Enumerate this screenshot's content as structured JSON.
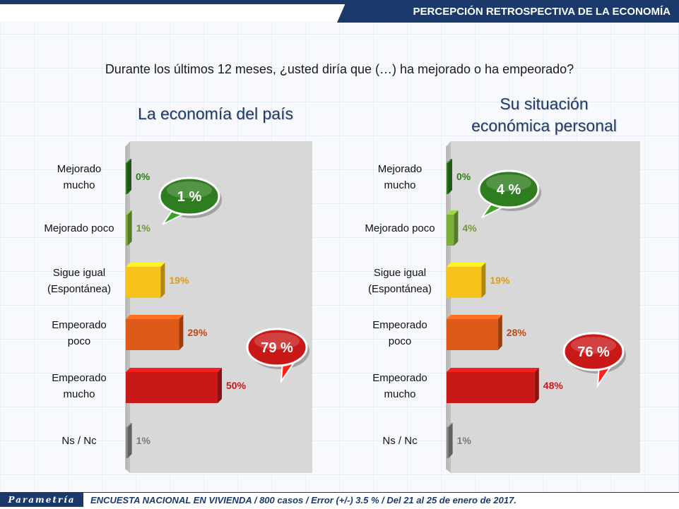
{
  "header": {
    "title": "PERCEPCIÓN RETROSPECTIVA DE LA ECONOMÍA"
  },
  "question": "Durante los últimos 12 meses, ¿usted diría que (…) ha mejorado o ha empeorado?",
  "footer": {
    "brand": "Parametría",
    "note": "ENCUESTA NACIONAL EN VIVIENDA / 800 casos / Error (+/-) 3.5 % / Del 21 al 25 de enero de 2017."
  },
  "colors": {
    "mejorado_mucho": "#2e7d1e",
    "mejorado_poco": "#7cae3a",
    "sigue_igual": "#f7c21b",
    "empeorado_poco": "#dd5a18",
    "empeorado_mucho": "#c91818",
    "ns_nc": "#8a8a8a"
  },
  "chart_data": [
    {
      "type": "bar",
      "title": "La economía del país",
      "categories": [
        "Mejorado mucho",
        "Mejorado poco",
        "Sigue igual (Espontánea)",
        "Empeorado poco",
        "Empeorado mucho",
        "Ns / Nc"
      ],
      "values": [
        0,
        1,
        19,
        29,
        50,
        1
      ],
      "value_labels": [
        "0%",
        "1%",
        "19%",
        "29%",
        "50%",
        "1%"
      ],
      "orientation": "horizontal",
      "callouts": [
        {
          "label": "1 %",
          "group": "mejorado",
          "color": "#2e7d1e"
        },
        {
          "label": "79 %",
          "group": "empeorado",
          "color": "#c91818"
        }
      ]
    },
    {
      "type": "bar",
      "title": "Su situación económica personal",
      "categories": [
        "Mejorado mucho",
        "Mejorado poco",
        "Sigue igual (Espontánea)",
        "Empeorado poco",
        "Empeorado mucho",
        "Ns / Nc"
      ],
      "values": [
        0,
        4,
        19,
        28,
        48,
        1
      ],
      "value_labels": [
        "0%",
        "4%",
        "19%",
        "28%",
        "48%",
        "1%"
      ],
      "orientation": "horizontal",
      "callouts": [
        {
          "label": "4 %",
          "group": "mejorado",
          "color": "#2e7d1e"
        },
        {
          "label": "76 %",
          "group": "empeorado",
          "color": "#c91818"
        }
      ]
    }
  ],
  "category_labels": [
    [
      "Mejorado",
      "mucho"
    ],
    [
      "Mejorado poco"
    ],
    [
      "Sigue igual",
      "(Espontánea)"
    ],
    [
      "Empeorado",
      "poco"
    ],
    [
      "Empeorado",
      "mucho"
    ],
    [
      "Ns / Nc"
    ]
  ],
  "panel_titles": [
    [
      "La economía del país"
    ],
    [
      "Su situación",
      "económica personal"
    ]
  ]
}
